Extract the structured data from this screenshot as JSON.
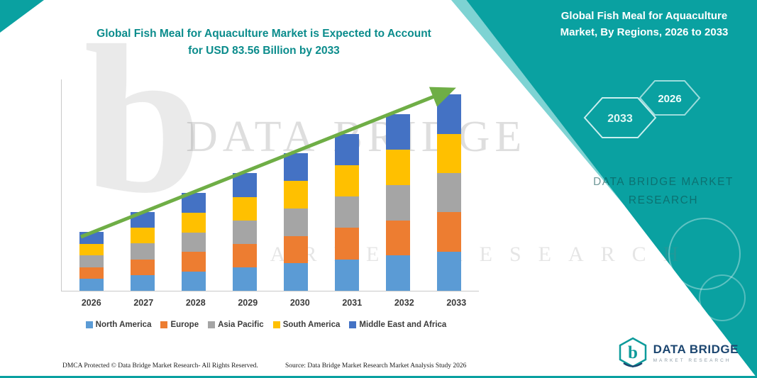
{
  "colors": {
    "teal": "#0AA1A1",
    "title_text": "#0B8C8C",
    "arrow_green": "#6FAE46",
    "axis_gray": "#C9C9C9"
  },
  "header": {
    "title_line1": "Global Fish Meal for Aquaculture Market is Expected to Account",
    "title_line2": "for USD 83.56 Billion by 2033"
  },
  "side_panel": {
    "title": "Global Fish Meal for Aquaculture Market, By Regions, 2026 to 2033",
    "hex_2033": "2033",
    "hex_2026": "2026",
    "brand_line1": "DATA BRIDGE MARKET",
    "brand_line2": "RESEARCH"
  },
  "watermark": {
    "big_b": "b",
    "line1": "DATA BRIDGE",
    "line2": "MARKET RESEARCH"
  },
  "footer": {
    "dmca": "DMCA Protected © Data Bridge Market Research-  All Rights Reserved.",
    "source": "Source: Data Bridge Market Research  Market Analysis Study 2026"
  },
  "logo": {
    "name": "DATA BRIDGE",
    "sub": "MARKET RESEARCH"
  },
  "chart_data": {
    "type": "bar",
    "stacked": true,
    "title": "Global Fish Meal for Aquaculture Market is Expected to Account for USD 83.56 Billion by 2033",
    "categories": [
      "2026",
      "2027",
      "2028",
      "2029",
      "2030",
      "2031",
      "2032",
      "2033"
    ],
    "series": [
      {
        "name": "North America",
        "color": "#5B9BD5",
        "values": [
          5.0,
          6.7,
          8.3,
          10.0,
          11.7,
          13.4,
          15.0,
          16.7
        ]
      },
      {
        "name": "Europe",
        "color": "#ED7D31",
        "values": [
          5.0,
          6.7,
          8.3,
          10.0,
          11.7,
          13.4,
          15.0,
          16.7
        ]
      },
      {
        "name": "Asia Pacific",
        "color": "#A5A5A5",
        "values": [
          5.0,
          6.7,
          8.3,
          10.0,
          11.7,
          13.4,
          15.0,
          16.7
        ]
      },
      {
        "name": "South America",
        "color": "#FFC000",
        "values": [
          5.0,
          6.7,
          8.3,
          10.0,
          11.7,
          13.4,
          15.0,
          16.7
        ]
      },
      {
        "name": "Middle East and Africa",
        "color": "#4472C4",
        "values": [
          5.0,
          6.6,
          8.4,
          10.1,
          11.7,
          13.2,
          15.2,
          16.76
        ]
      }
    ],
    "totals_estimated": [
      25.0,
      33.4,
      41.6,
      50.1,
      58.5,
      66.8,
      75.2,
      83.56
    ],
    "unit": "USD Billion",
    "ylim": [
      0,
      90
    ],
    "xlabel": "",
    "ylabel": "",
    "grid": false,
    "legend_position": "bottom",
    "trend_arrow": true
  }
}
